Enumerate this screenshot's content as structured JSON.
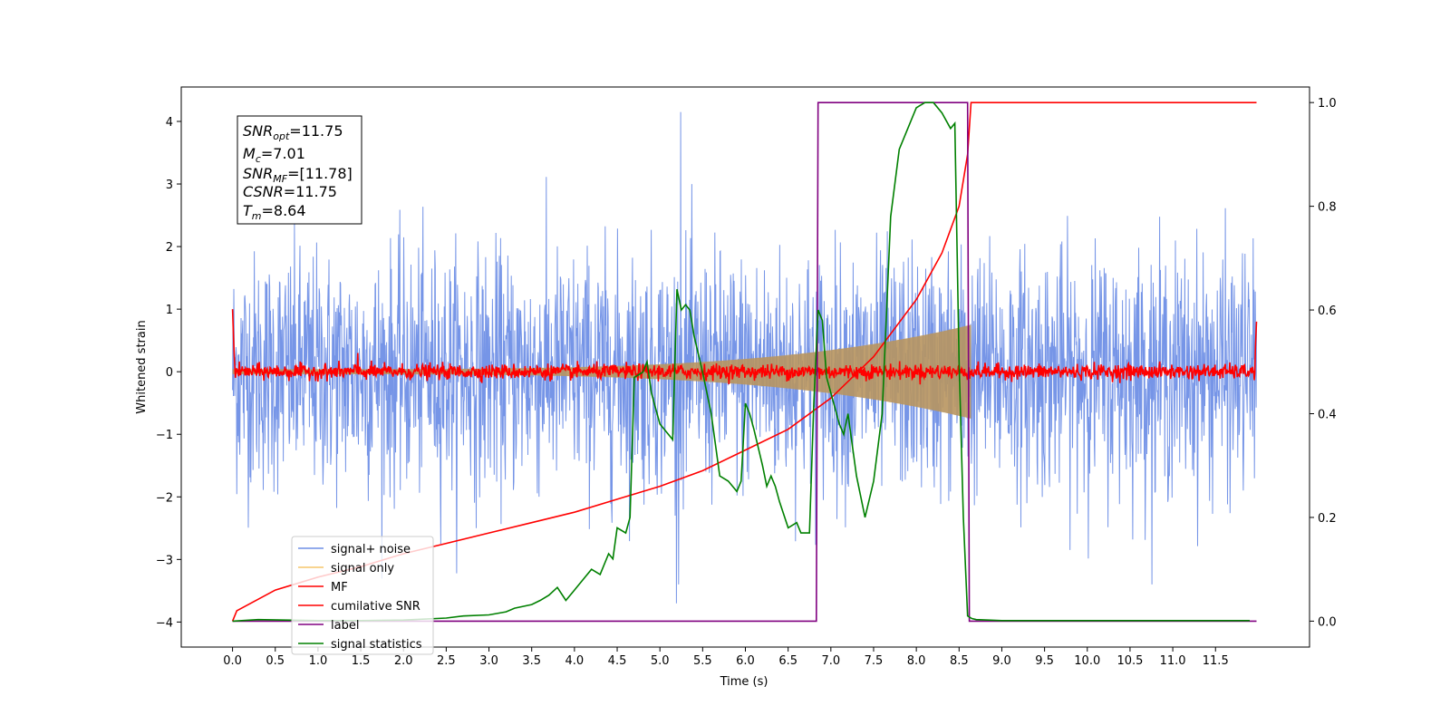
{
  "chart_data": {
    "type": "line",
    "title": "",
    "xlabel": "Time (s)",
    "ylabel": "Whitened strain",
    "xlim": [
      -0.6,
      12.6
    ],
    "ylim": [
      -4.4,
      4.55
    ],
    "ylim_right": [
      -0.05,
      1.03
    ],
    "x_ticks": [
      0.0,
      0.5,
      1.0,
      1.5,
      2.0,
      2.5,
      3.0,
      3.5,
      4.0,
      4.5,
      5.0,
      5.5,
      6.0,
      6.5,
      7.0,
      7.5,
      8.0,
      8.5,
      9.0,
      9.5,
      10.0,
      10.5,
      11.0,
      11.5
    ],
    "x_tick_labels": [
      "0.0",
      "0.5",
      "1.0",
      "1.5",
      "2.0",
      "2.5",
      "3.0",
      "3.5",
      "4.0",
      "4.5",
      "5.0",
      "5.5",
      "6.0",
      "6.5",
      "7.0",
      "7.5",
      "8.0",
      "8.5",
      "9.0",
      "9.5",
      "10.0",
      "10.5",
      "11.0",
      "11.5"
    ],
    "y_ticks_left": [
      -4,
      -3,
      -2,
      -1,
      0,
      1,
      2,
      3,
      4
    ],
    "y_tick_labels_left": [
      "−4",
      "−3",
      "−2",
      "−1",
      "0",
      "1",
      "2",
      "3",
      "4"
    ],
    "y_ticks_right": [
      0.0,
      0.2,
      0.4,
      0.6,
      0.8,
      1.0
    ],
    "y_tick_labels_right": [
      "0.0",
      "0.2",
      "0.4",
      "0.6",
      "0.8",
      "1.0"
    ],
    "grid": false,
    "legend_position": "lower-left",
    "legend": [
      {
        "label": "signal+ noise",
        "color": "#6f8fe6"
      },
      {
        "label": "signal only",
        "color": "#f5c66b"
      },
      {
        "label": "MF",
        "color": "#ff0000"
      },
      {
        "label": "cumilative SNR",
        "color": "#ff0000"
      },
      {
        "label": "label",
        "color": "#800080"
      },
      {
        "label": "signal statistics",
        "color": "#008000"
      }
    ],
    "annotation": {
      "snr_opt": {
        "var": "SNR",
        "sub": "opt",
        "val": "=11.75"
      },
      "mc": {
        "var": "M",
        "sub": "c",
        "val": "=7.01"
      },
      "snr_mf": {
        "var": "SNR",
        "sub": "MF",
        "val": "=[11.78]"
      },
      "csnr": {
        "var": "CSNR",
        "sub": "",
        "val": "=11.75"
      },
      "tm": {
        "var": "T",
        "sub": "m",
        "val": "=8.64"
      }
    },
    "series": [
      {
        "name": "signal+ noise",
        "axis": "left",
        "color": "#6f8fe6",
        "kind": "noise",
        "x_range": [
          0.0,
          11.98
        ],
        "envelope": [
          -2.5,
          2.5
        ],
        "peak": 4.15,
        "trough": -3.7
      },
      {
        "name": "signal only",
        "axis": "left",
        "color": "#f5c66b",
        "kind": "chirp",
        "x_range": [
          0.0,
          8.64
        ],
        "amp_start": 0.04,
        "amp_end": 0.75
      },
      {
        "name": "MF",
        "axis": "left",
        "color": "#ff0000",
        "kind": "filter-output",
        "x_range": [
          0.0,
          11.98
        ],
        "start_value": 1.0,
        "end_value": 0.8,
        "band": [
          -0.15,
          0.15
        ]
      },
      {
        "name": "cumilative SNR",
        "axis": "right",
        "color": "#ff0000",
        "x": [
          0.0,
          0.05,
          0.5,
          1.0,
          1.5,
          2.0,
          2.5,
          3.0,
          3.5,
          4.0,
          4.5,
          5.0,
          5.5,
          6.0,
          6.5,
          7.0,
          7.5,
          8.0,
          8.3,
          8.5,
          8.6,
          8.64,
          9.0,
          10.0,
          11.0,
          11.98
        ],
        "y": [
          0.0,
          0.02,
          0.06,
          0.085,
          0.105,
          0.13,
          0.15,
          0.17,
          0.19,
          0.21,
          0.235,
          0.26,
          0.29,
          0.33,
          0.37,
          0.43,
          0.51,
          0.62,
          0.71,
          0.8,
          0.9,
          1.0,
          1.0,
          1.0,
          1.0,
          1.0
        ]
      },
      {
        "name": "label",
        "axis": "right",
        "color": "#800080",
        "x": [
          0.0,
          6.83,
          6.85,
          8.6,
          8.62,
          11.98
        ],
        "y": [
          0.0,
          0.0,
          1.0,
          1.0,
          0.0,
          0.0
        ]
      },
      {
        "name": "signal statistics",
        "axis": "right",
        "color": "#008000",
        "x": [
          0.0,
          0.3,
          0.6,
          1.0,
          1.5,
          2.0,
          2.5,
          2.7,
          3.0,
          3.2,
          3.3,
          3.5,
          3.6,
          3.7,
          3.8,
          3.9,
          4.0,
          4.1,
          4.2,
          4.3,
          4.4,
          4.45,
          4.5,
          4.6,
          4.65,
          4.7,
          4.8,
          4.85,
          4.9,
          5.0,
          5.1,
          5.15,
          5.2,
          5.25,
          5.3,
          5.35,
          5.4,
          5.5,
          5.6,
          5.7,
          5.8,
          5.85,
          5.9,
          5.95,
          6.0,
          6.05,
          6.1,
          6.2,
          6.25,
          6.3,
          6.35,
          6.4,
          6.5,
          6.6,
          6.65,
          6.75,
          6.8,
          6.85,
          6.9,
          6.95,
          7.0,
          7.1,
          7.15,
          7.2,
          7.3,
          7.4,
          7.5,
          7.6,
          7.7,
          7.8,
          7.9,
          8.0,
          8.1,
          8.2,
          8.3,
          8.4,
          8.45,
          8.5,
          8.55,
          8.6,
          8.65,
          8.7,
          9.0,
          10.0,
          11.0,
          11.9
        ],
        "y": [
          0.0,
          0.003,
          0.002,
          0.001,
          0.001,
          0.002,
          0.006,
          0.01,
          0.012,
          0.018,
          0.025,
          0.032,
          0.04,
          0.05,
          0.065,
          0.04,
          0.06,
          0.08,
          0.1,
          0.09,
          0.13,
          0.12,
          0.18,
          0.17,
          0.2,
          0.47,
          0.48,
          0.5,
          0.44,
          0.38,
          0.36,
          0.35,
          0.64,
          0.6,
          0.61,
          0.6,
          0.55,
          0.48,
          0.4,
          0.28,
          0.27,
          0.26,
          0.25,
          0.27,
          0.42,
          0.4,
          0.37,
          0.3,
          0.26,
          0.28,
          0.26,
          0.23,
          0.18,
          0.19,
          0.17,
          0.17,
          0.42,
          0.6,
          0.58,
          0.47,
          0.44,
          0.38,
          0.36,
          0.4,
          0.28,
          0.2,
          0.27,
          0.4,
          0.78,
          0.91,
          0.95,
          0.99,
          1.0,
          1.0,
          0.98,
          0.95,
          0.96,
          0.5,
          0.2,
          0.01,
          0.005,
          0.003,
          0.001,
          0.001,
          0.001,
          0.001
        ]
      }
    ]
  }
}
